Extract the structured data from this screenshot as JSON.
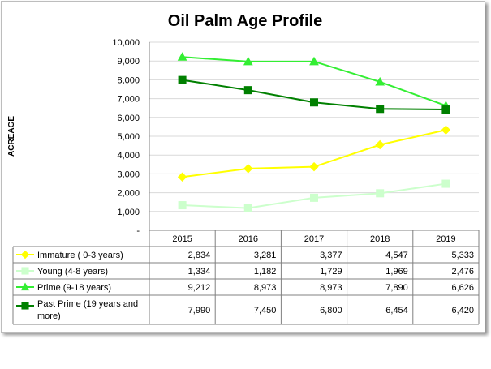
{
  "chart_data": {
    "type": "line",
    "title": "Oil Palm Age Profile",
    "ylabel": "ACREAGE",
    "xlabel": "",
    "categories": [
      "2015",
      "2016",
      "2017",
      "2018",
      "2019"
    ],
    "ylim": [
      0,
      10000
    ],
    "yticks": [
      {
        "value": 0,
        "label": "-"
      },
      {
        "value": 1000,
        "label": "1,000"
      },
      {
        "value": 2000,
        "label": "2,000"
      },
      {
        "value": 3000,
        "label": "3,000"
      },
      {
        "value": 4000,
        "label": "4,000"
      },
      {
        "value": 5000,
        "label": "5,000"
      },
      {
        "value": 6000,
        "label": "6,000"
      },
      {
        "value": 7000,
        "label": "7,000"
      },
      {
        "value": 8000,
        "label": "8,000"
      },
      {
        "value": 9000,
        "label": "9,000"
      },
      {
        "value": 10000,
        "label": "10,000"
      }
    ],
    "grid": true,
    "legend": "data-table",
    "series": [
      {
        "name": "Immature ( 0-3 years)",
        "values": [
          2834,
          3281,
          3377,
          4547,
          5333
        ],
        "labels": [
          "2,834",
          "3,281",
          "3,377",
          "4,547",
          "5,333"
        ],
        "color": "#ffff00",
        "marker": "diamond"
      },
      {
        "name": "Young (4-8 years)",
        "values": [
          1334,
          1182,
          1729,
          1969,
          2476
        ],
        "labels": [
          "1,334",
          "1,182",
          "1,729",
          "1,969",
          "2,476"
        ],
        "color": "#ccffcc",
        "marker": "square"
      },
      {
        "name": "Prime (9-18 years)",
        "values": [
          9212,
          8973,
          8973,
          7890,
          6626
        ],
        "labels": [
          "9,212",
          "8,973",
          "8,973",
          "7,890",
          "6,626"
        ],
        "color": "#33ee33",
        "marker": "triangle"
      },
      {
        "name": "Past Prime (19 years and more)",
        "name_lines": [
          "Past Prime (19 years and",
          "more)"
        ],
        "values": [
          7990,
          7450,
          6800,
          6454,
          6420
        ],
        "labels": [
          "7,990",
          "7,450",
          "6,800",
          "6,454",
          "6,420"
        ],
        "color": "#008000",
        "marker": "square"
      }
    ]
  }
}
